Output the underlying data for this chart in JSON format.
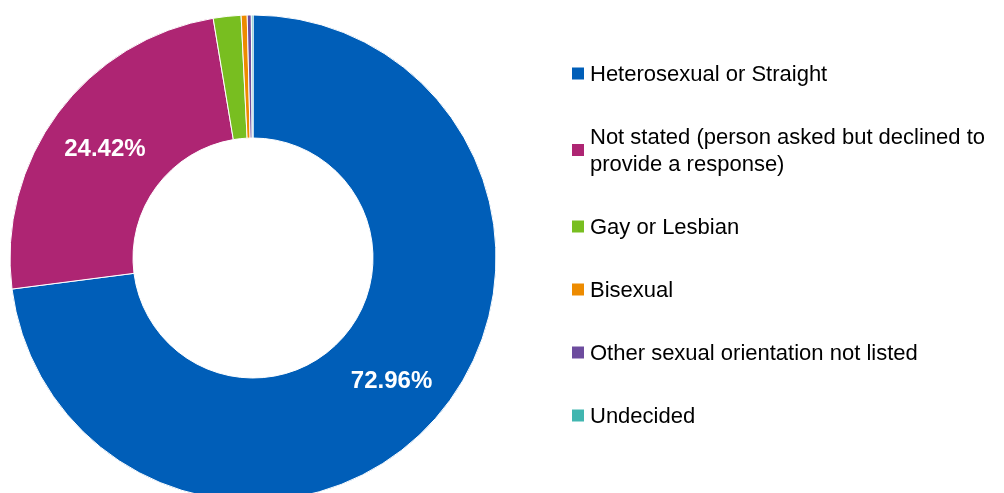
{
  "chart_data": {
    "type": "donut",
    "categories": [
      "Heterosexual or Straight",
      "Not stated (person asked but declined to provide a response)",
      "Gay or Lesbian",
      "Bisexual",
      "Other sexual orientation not listed",
      "Undecided"
    ],
    "values": [
      72.96,
      24.42,
      1.84,
      0.4,
      0.27,
      0.11
    ],
    "colors": [
      "#005eb8",
      "#ae2573",
      "#78be20",
      "#ed8b00",
      "#6d4c9e",
      "#41b6b0"
    ],
    "value_labels": [
      "72.96%",
      "24.42%",
      null,
      null,
      null,
      null
    ],
    "legend": "right"
  }
}
